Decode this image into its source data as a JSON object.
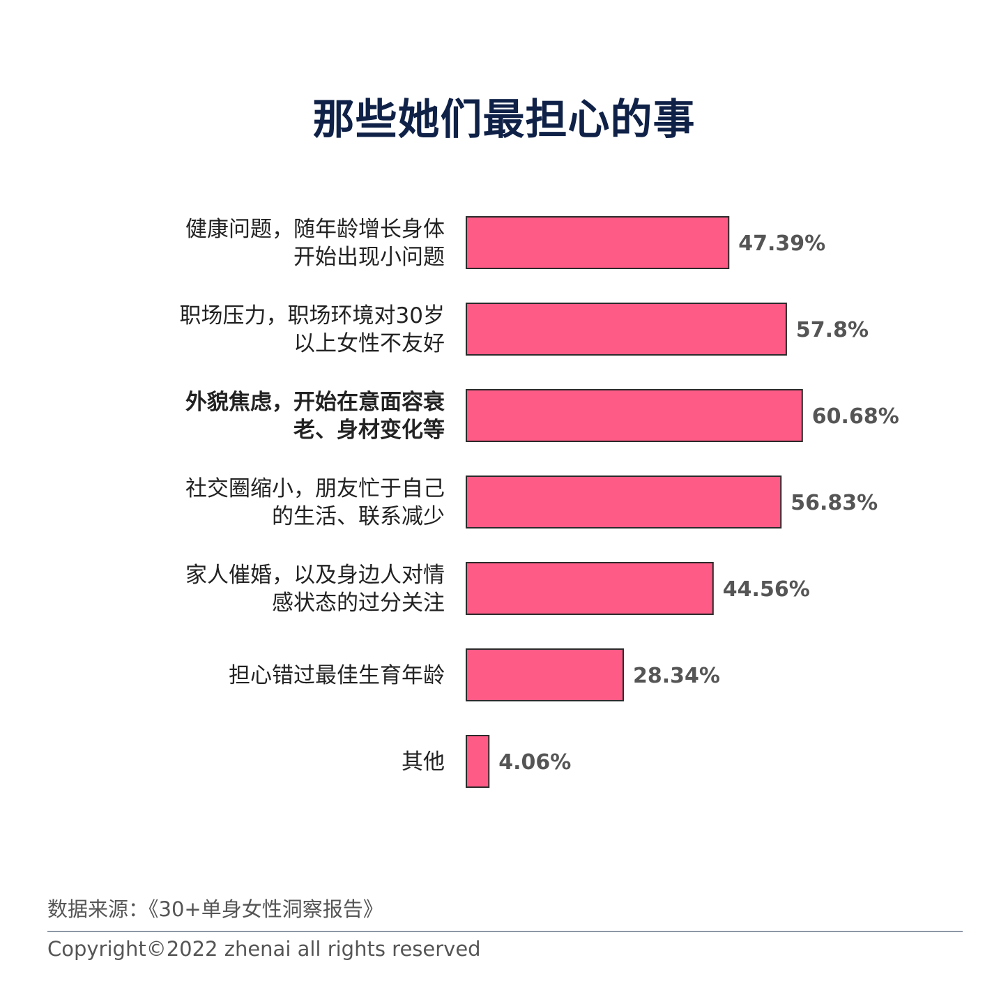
{
  "title": "那些她们最担心的事",
  "chart_data": {
    "type": "bar",
    "orientation": "horizontal",
    "title": "那些她们最担心的事",
    "categories": [
      [
        "健康问题，随年龄增长身体",
        "开始出现小问题"
      ],
      [
        "职场压力，职场环境对30岁",
        "以上女性不友好"
      ],
      [
        "外貌焦虑，开始在意面容衰",
        "老、身材变化等"
      ],
      [
        "社交圈缩小，朋友忙于自己",
        "的生活、联系减少"
      ],
      [
        "家人催婚，以及身边人对情",
        "感状态的过分关注"
      ],
      [
        "担心错过最佳生育年龄"
      ],
      [
        "其他"
      ]
    ],
    "values": [
      47.39,
      57.8,
      60.68,
      56.83,
      44.56,
      28.34,
      4.06
    ],
    "value_labels": [
      "47.39%",
      "57.8%",
      "60.68%",
      "56.83%",
      "44.56%",
      "28.34%",
      "4.06%"
    ],
    "highlighted_index": 2,
    "bar_color": "#fe5b86",
    "bar_border_color": "#2b2b2b",
    "xlim": [
      0,
      100
    ],
    "xlabel": "",
    "ylabel": "",
    "grid": false
  },
  "footer": {
    "source": "数据来源：《30+单身女性洞察报告》",
    "copyright": "Copyright©2022  zhenai  all rights reserved"
  },
  "colors": {
    "title": "#0f2147",
    "divider": "#8d97a6",
    "footer_text": "#555555"
  }
}
